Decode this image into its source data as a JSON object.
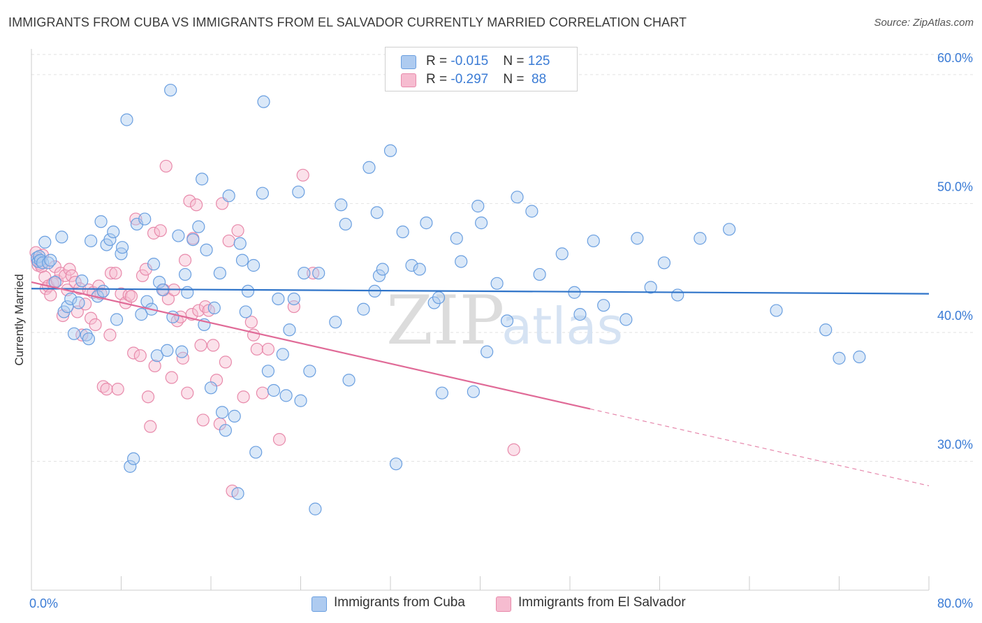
{
  "title": "IMMIGRANTS FROM CUBA VS IMMIGRANTS FROM EL SALVADOR CURRENTLY MARRIED CORRELATION CHART",
  "source": "Source: ZipAtlas.com",
  "watermark": {
    "zip": "ZIP",
    "atlas": "atlas"
  },
  "legend": {
    "cuba": {
      "r_label": "R = ",
      "r_value": "-0.015",
      "n_label": "N = ",
      "n_value": "125"
    },
    "elsalvador": {
      "r_label": "R = ",
      "r_value": "-0.297",
      "n_label": "N = ",
      "n_value": " 88"
    }
  },
  "colors": {
    "cuba_fill": "#aecbf0",
    "cuba_stroke": "#6a9fe0",
    "cuba_line": "#2f74c9",
    "elsal_fill": "#f6bcd0",
    "elsal_stroke": "#e88aab",
    "elsal_line": "#e06a97",
    "grid": "#e2e2e2",
    "tick_label": "#3a7bd5"
  },
  "chart_data": {
    "type": "scatter",
    "title": "IMMIGRANTS FROM CUBA VS IMMIGRANTS FROM EL SALVADOR CURRENTLY MARRIED CORRELATION CHART",
    "xlabel": "",
    "ylabel": "Currently Married",
    "xlim": [
      0,
      80
    ],
    "ylim": [
      20,
      62
    ],
    "x_tick_labels": [
      "0.0%",
      "80.0%"
    ],
    "y_ticks": [
      30,
      40,
      50,
      60
    ],
    "y_tick_labels": [
      "30.0%",
      "40.0%",
      "50.0%",
      "60.0%"
    ],
    "grid": true,
    "legend_position": "top-center",
    "series": [
      {
        "name": "Immigrants from Cuba",
        "r": -0.015,
        "n": 125,
        "trend": {
          "x": [
            0,
            80
          ],
          "y": [
            43.4,
            43.0
          ],
          "solid_to": 80
        },
        "points": [
          [
            0.5,
            45.8
          ],
          [
            0.6,
            45.5
          ],
          [
            0.7,
            45.9
          ],
          [
            0.8,
            45.6
          ],
          [
            1.0,
            45.4
          ],
          [
            1.2,
            47.0
          ],
          [
            1.5,
            45.4
          ],
          [
            1.7,
            45.6
          ],
          [
            2.1,
            43.9
          ],
          [
            2.7,
            47.4
          ],
          [
            2.9,
            41.6
          ],
          [
            3.2,
            42.0
          ],
          [
            3.5,
            42.6
          ],
          [
            3.8,
            39.9
          ],
          [
            4.2,
            42.3
          ],
          [
            4.5,
            44.0
          ],
          [
            4.9,
            39.8
          ],
          [
            5.1,
            39.5
          ],
          [
            5.3,
            47.1
          ],
          [
            5.9,
            42.8
          ],
          [
            6.2,
            48.6
          ],
          [
            6.4,
            43.2
          ],
          [
            6.7,
            46.8
          ],
          [
            7.0,
            47.2
          ],
          [
            7.3,
            47.8
          ],
          [
            7.6,
            41.0
          ],
          [
            8.0,
            46.1
          ],
          [
            8.1,
            46.6
          ],
          [
            8.5,
            56.5
          ],
          [
            8.8,
            29.6
          ],
          [
            9.1,
            30.2
          ],
          [
            9.4,
            48.4
          ],
          [
            9.8,
            41.4
          ],
          [
            10.1,
            48.8
          ],
          [
            10.3,
            42.4
          ],
          [
            10.7,
            41.8
          ],
          [
            10.9,
            45.3
          ],
          [
            11.2,
            38.2
          ],
          [
            11.4,
            43.9
          ],
          [
            11.7,
            43.3
          ],
          [
            12.1,
            38.6
          ],
          [
            12.4,
            58.8
          ],
          [
            12.6,
            41.2
          ],
          [
            13.1,
            47.5
          ],
          [
            13.4,
            38.5
          ],
          [
            13.7,
            44.5
          ],
          [
            13.9,
            43.1
          ],
          [
            14.4,
            47.2
          ],
          [
            14.9,
            48.2
          ],
          [
            15.2,
            51.9
          ],
          [
            15.4,
            40.6
          ],
          [
            15.6,
            46.4
          ],
          [
            16.0,
            35.7
          ],
          [
            16.3,
            41.9
          ],
          [
            16.8,
            44.6
          ],
          [
            17.0,
            33.8
          ],
          [
            17.3,
            32.4
          ],
          [
            17.6,
            50.6
          ],
          [
            18.1,
            33.5
          ],
          [
            18.4,
            27.5
          ],
          [
            18.6,
            46.9
          ],
          [
            18.8,
            45.6
          ],
          [
            19.1,
            41.6
          ],
          [
            19.3,
            43.2
          ],
          [
            19.8,
            45.2
          ],
          [
            20.0,
            30.7
          ],
          [
            20.6,
            50.8
          ],
          [
            20.7,
            57.9
          ],
          [
            21.1,
            37.0
          ],
          [
            21.6,
            35.5
          ],
          [
            22.0,
            42.6
          ],
          [
            22.4,
            38.3
          ],
          [
            22.7,
            35.1
          ],
          [
            23.0,
            40.2
          ],
          [
            23.4,
            42.6
          ],
          [
            23.8,
            50.9
          ],
          [
            24.0,
            34.7
          ],
          [
            24.3,
            44.6
          ],
          [
            24.8,
            37.0
          ],
          [
            25.3,
            26.3
          ],
          [
            25.6,
            44.6
          ],
          [
            27.1,
            40.8
          ],
          [
            27.6,
            49.9
          ],
          [
            28.0,
            48.4
          ],
          [
            28.3,
            36.3
          ],
          [
            29.6,
            41.8
          ],
          [
            30.1,
            52.8
          ],
          [
            30.6,
            43.2
          ],
          [
            30.8,
            49.3
          ],
          [
            31.0,
            44.4
          ],
          [
            31.3,
            44.9
          ],
          [
            32.0,
            54.1
          ],
          [
            32.5,
            29.8
          ],
          [
            33.1,
            47.8
          ],
          [
            33.9,
            45.2
          ],
          [
            34.6,
            44.9
          ],
          [
            35.2,
            48.5
          ],
          [
            35.9,
            42.3
          ],
          [
            36.3,
            42.7
          ],
          [
            36.6,
            35.3
          ],
          [
            37.9,
            47.3
          ],
          [
            38.3,
            45.5
          ],
          [
            39.4,
            35.4
          ],
          [
            39.8,
            49.8
          ],
          [
            40.1,
            48.5
          ],
          [
            40.6,
            38.5
          ],
          [
            41.5,
            43.8
          ],
          [
            42.4,
            40.9
          ],
          [
            43.3,
            50.5
          ],
          [
            44.6,
            49.4
          ],
          [
            45.3,
            44.5
          ],
          [
            47.3,
            46.1
          ],
          [
            48.4,
            43.1
          ],
          [
            48.9,
            41.4
          ],
          [
            50.1,
            47.1
          ],
          [
            51.0,
            42.1
          ],
          [
            53.0,
            41.0
          ],
          [
            54.0,
            47.3
          ],
          [
            55.2,
            43.5
          ],
          [
            56.4,
            45.4
          ],
          [
            57.6,
            42.9
          ],
          [
            59.6,
            47.3
          ],
          [
            62.2,
            48.0
          ],
          [
            66.4,
            41.7
          ],
          [
            70.8,
            40.2
          ],
          [
            72.0,
            38.0
          ],
          [
            73.8,
            38.1
          ]
        ]
      },
      {
        "name": "Immigrants from El Salvador",
        "r": -0.297,
        "n": 88,
        "trend": {
          "x": [
            0,
            80
          ],
          "y": [
            43.9,
            28.1
          ],
          "solid_to": 49.8
        },
        "points": [
          [
            0.4,
            46.2
          ],
          [
            0.5,
            45.6
          ],
          [
            0.6,
            45.2
          ],
          [
            0.8,
            45.3
          ],
          [
            0.9,
            45.1
          ],
          [
            1.0,
            46.0
          ],
          [
            1.2,
            44.3
          ],
          [
            1.3,
            43.4
          ],
          [
            1.5,
            43.6
          ],
          [
            1.7,
            42.9
          ],
          [
            1.9,
            43.8
          ],
          [
            2.1,
            45.1
          ],
          [
            2.3,
            44.0
          ],
          [
            2.6,
            44.6
          ],
          [
            2.8,
            41.3
          ],
          [
            3.0,
            44.4
          ],
          [
            3.2,
            43.3
          ],
          [
            3.4,
            44.9
          ],
          [
            3.6,
            44.4
          ],
          [
            3.9,
            43.9
          ],
          [
            4.1,
            41.6
          ],
          [
            4.3,
            43.4
          ],
          [
            4.5,
            39.8
          ],
          [
            4.8,
            42.2
          ],
          [
            5.1,
            43.3
          ],
          [
            5.3,
            41.1
          ],
          [
            5.5,
            43.1
          ],
          [
            5.7,
            40.6
          ],
          [
            6.0,
            43.6
          ],
          [
            6.2,
            43.0
          ],
          [
            6.4,
            35.8
          ],
          [
            6.7,
            35.6
          ],
          [
            7.0,
            39.8
          ],
          [
            7.1,
            44.6
          ],
          [
            7.5,
            44.6
          ],
          [
            7.7,
            35.6
          ],
          [
            8.0,
            43.0
          ],
          [
            8.4,
            42.3
          ],
          [
            8.7,
            42.9
          ],
          [
            8.9,
            42.8
          ],
          [
            9.1,
            38.4
          ],
          [
            9.3,
            48.8
          ],
          [
            9.7,
            38.2
          ],
          [
            9.9,
            44.4
          ],
          [
            10.2,
            44.9
          ],
          [
            10.4,
            35.0
          ],
          [
            10.6,
            32.7
          ],
          [
            10.9,
            47.7
          ],
          [
            11.0,
            37.4
          ],
          [
            11.5,
            47.9
          ],
          [
            11.8,
            43.3
          ],
          [
            12.0,
            52.9
          ],
          [
            12.2,
            42.6
          ],
          [
            12.5,
            36.5
          ],
          [
            12.7,
            43.3
          ],
          [
            13.0,
            40.9
          ],
          [
            13.3,
            41.2
          ],
          [
            13.5,
            38.0
          ],
          [
            13.7,
            45.6
          ],
          [
            13.9,
            35.3
          ],
          [
            14.1,
            50.2
          ],
          [
            14.3,
            41.4
          ],
          [
            14.4,
            47.3
          ],
          [
            14.7,
            49.9
          ],
          [
            14.9,
            41.7
          ],
          [
            15.1,
            39.0
          ],
          [
            15.3,
            33.2
          ],
          [
            15.5,
            42.0
          ],
          [
            15.8,
            41.7
          ],
          [
            16.2,
            39.0
          ],
          [
            16.5,
            36.3
          ],
          [
            16.8,
            32.9
          ],
          [
            17.0,
            50.0
          ],
          [
            17.3,
            37.7
          ],
          [
            17.6,
            47.1
          ],
          [
            17.9,
            27.7
          ],
          [
            18.4,
            47.9
          ],
          [
            18.9,
            35.0
          ],
          [
            19.6,
            40.8
          ],
          [
            19.8,
            39.8
          ],
          [
            20.1,
            38.7
          ],
          [
            20.6,
            35.3
          ],
          [
            21.1,
            38.7
          ],
          [
            22.1,
            31.7
          ],
          [
            23.4,
            42.0
          ],
          [
            24.2,
            52.2
          ],
          [
            25.1,
            44.6
          ],
          [
            43.0,
            30.9
          ]
        ]
      }
    ]
  },
  "bottom_legend": {
    "cuba": "Immigrants from Cuba",
    "elsalvador": "Immigrants from El Salvador"
  }
}
